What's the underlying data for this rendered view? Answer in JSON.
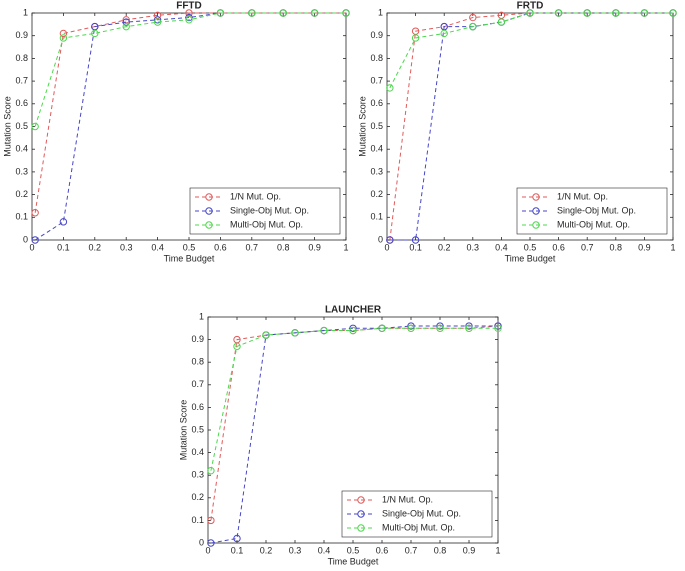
{
  "chart_data": [
    {
      "type": "line",
      "title": "FFTD",
      "x_label": "Time Budget",
      "y_label": "Mutation Score",
      "x": [
        0.01,
        0.1,
        0.2,
        0.3,
        0.4,
        0.5,
        0.6,
        0.7,
        0.8,
        0.9,
        1.0
      ],
      "series": [
        {
          "name": "1/N Mut. Op.",
          "color": "#e05a5a",
          "values": [
            0.12,
            0.91,
            0.94,
            0.97,
            0.99,
            1,
            1,
            1,
            1,
            1,
            1
          ]
        },
        {
          "name": "Single-Obj Mut. Op.",
          "color": "#4646c8",
          "values": [
            0,
            0.08,
            0.94,
            0.96,
            0.97,
            0.98,
            1,
            1,
            1,
            1,
            1
          ]
        },
        {
          "name": "Multi-Obj Mut. Op.",
          "color": "#4cd84c",
          "values": [
            0.5,
            0.89,
            0.91,
            0.94,
            0.96,
            0.97,
            1,
            1,
            1,
            1,
            1
          ]
        }
      ],
      "xlim": [
        0,
        1
      ],
      "ylim": [
        0,
        1
      ],
      "xticks": [
        0,
        0.1,
        0.2,
        0.3,
        0.4,
        0.5,
        0.6,
        0.7,
        0.8,
        0.9,
        1
      ],
      "yticks": [
        0,
        0.1,
        0.2,
        0.3,
        0.4,
        0.5,
        0.6,
        0.7,
        0.8,
        0.9,
        1
      ],
      "legend": "lower right"
    },
    {
      "type": "line",
      "title": "FRTD",
      "x_label": "Time Budget",
      "y_label": "Mutation Score",
      "x": [
        0.01,
        0.1,
        0.2,
        0.3,
        0.4,
        0.5,
        0.6,
        0.7,
        0.8,
        0.9,
        1.0
      ],
      "series": [
        {
          "name": "1/N Mut. Op.",
          "color": "#e05a5a",
          "values": [
            0,
            0.92,
            0.94,
            0.98,
            0.99,
            1,
            1,
            1,
            1,
            1,
            1
          ]
        },
        {
          "name": "Single-Obj Mut. Op.",
          "color": "#4646c8",
          "values": [
            0,
            0,
            0.94,
            0.94,
            0.96,
            1,
            1,
            1,
            1,
            1,
            1
          ]
        },
        {
          "name": "Multi-Obj Mut. Op.",
          "color": "#4cd84c",
          "values": [
            0.67,
            0.89,
            0.91,
            0.94,
            0.96,
            1,
            1,
            1,
            1,
            1,
            1
          ]
        }
      ],
      "xlim": [
        0,
        1
      ],
      "ylim": [
        0,
        1
      ],
      "xticks": [
        0,
        0.1,
        0.2,
        0.3,
        0.4,
        0.5,
        0.6,
        0.7,
        0.8,
        0.9,
        1
      ],
      "yticks": [
        0,
        0.1,
        0.2,
        0.3,
        0.4,
        0.5,
        0.6,
        0.7,
        0.8,
        0.9,
        1
      ],
      "legend": "lower right"
    },
    {
      "type": "line",
      "title": "LAUNCHER",
      "x_label": "Time Budget",
      "y_label": "Mutation Score",
      "x": [
        0.01,
        0.1,
        0.2,
        0.3,
        0.4,
        0.5,
        0.6,
        0.7,
        0.8,
        0.9,
        1.0
      ],
      "series": [
        {
          "name": "1/N Mut. Op.",
          "color": "#e05a5a",
          "values": [
            0.1,
            0.9,
            0.92,
            0.93,
            0.94,
            0.94,
            0.95,
            0.95,
            0.95,
            0.95,
            0.96
          ]
        },
        {
          "name": "Single-Obj Mut. Op.",
          "color": "#4646c8",
          "values": [
            0,
            0.02,
            0.92,
            0.93,
            0.94,
            0.95,
            0.95,
            0.96,
            0.96,
            0.96,
            0.96
          ]
        },
        {
          "name": "Multi-Obj Mut. Op.",
          "color": "#4cd84c",
          "values": [
            0.32,
            0.87,
            0.92,
            0.93,
            0.94,
            0.94,
            0.95,
            0.95,
            0.95,
            0.95,
            0.95
          ]
        }
      ],
      "xlim": [
        0,
        1
      ],
      "ylim": [
        0,
        1
      ],
      "xticks": [
        0,
        0.1,
        0.2,
        0.3,
        0.4,
        0.5,
        0.6,
        0.7,
        0.8,
        0.9,
        1
      ],
      "yticks": [
        0,
        0.1,
        0.2,
        0.3,
        0.4,
        0.5,
        0.6,
        0.7,
        0.8,
        0.9,
        1
      ],
      "legend": "lower right"
    }
  ]
}
